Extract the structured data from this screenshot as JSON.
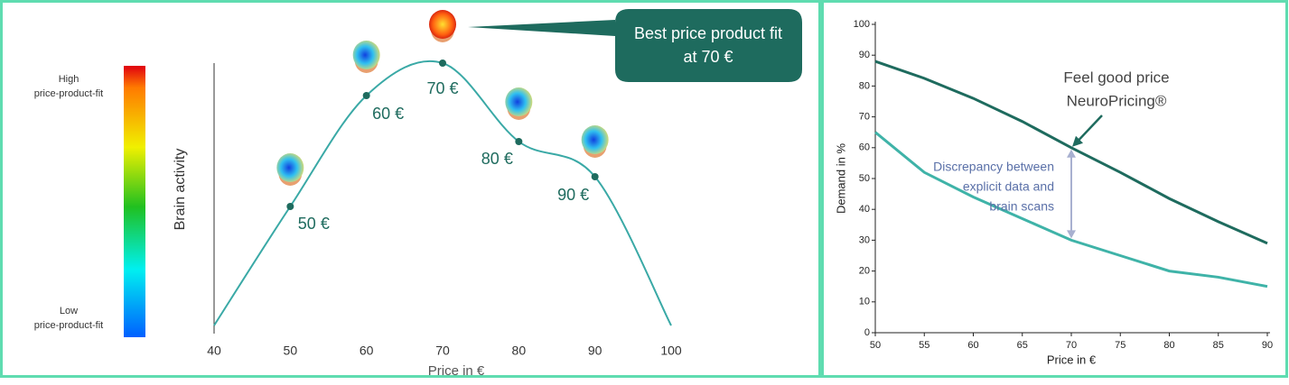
{
  "chart_data": [
    {
      "type": "line",
      "y_label": "Brain activity",
      "x_label": "Price in €",
      "x": [
        40,
        50,
        60,
        70,
        80,
        90,
        100
      ],
      "series": [
        {
          "color": "#3aa9a6",
          "values": [
            3,
            47,
            88,
            100,
            71,
            58,
            3
          ]
        }
      ],
      "point_labels": [
        null,
        "50 €",
        "60 €",
        "70 €",
        "80 €",
        "90 €",
        null
      ],
      "point_color": "#1e6b5e",
      "xlim": [
        40,
        100
      ],
      "xticks": [
        40,
        50,
        60,
        70,
        80,
        90,
        100
      ],
      "ylim": [
        0,
        100
      ],
      "color_scale": {
        "high": [
          "High",
          "price-product-fit"
        ],
        "low": [
          "Low",
          "price-product-fit"
        ]
      },
      "callout": [
        "Best price product fit",
        "at 70 €"
      ]
    },
    {
      "type": "line",
      "y_label": "Demand in %",
      "x_label": "Price in €",
      "x": [
        50,
        55,
        60,
        65,
        70,
        75,
        80,
        85,
        90
      ],
      "series": [
        {
          "color": "#1e6b5e",
          "values": [
            88,
            82.5,
            76,
            68.5,
            60,
            52,
            43.5,
            36,
            29
          ]
        },
        {
          "color": "#3fb3a8",
          "values": [
            65,
            52,
            44,
            37,
            30,
            25,
            20,
            18,
            15
          ]
        }
      ],
      "xlim": [
        50,
        90
      ],
      "xticks": [
        50,
        55,
        60,
        65,
        70,
        75,
        80,
        85,
        90
      ],
      "ylim": [
        0,
        100
      ],
      "yticks": [
        0,
        10,
        20,
        30,
        40,
        50,
        60,
        70,
        80,
        90,
        100
      ],
      "annotations": [
        {
          "text": [
            "Feel good price",
            "NeuroPricing®"
          ]
        },
        {
          "text": [
            "Discrepancy between",
            "explicit data and",
            "brain scans"
          ]
        }
      ]
    }
  ]
}
